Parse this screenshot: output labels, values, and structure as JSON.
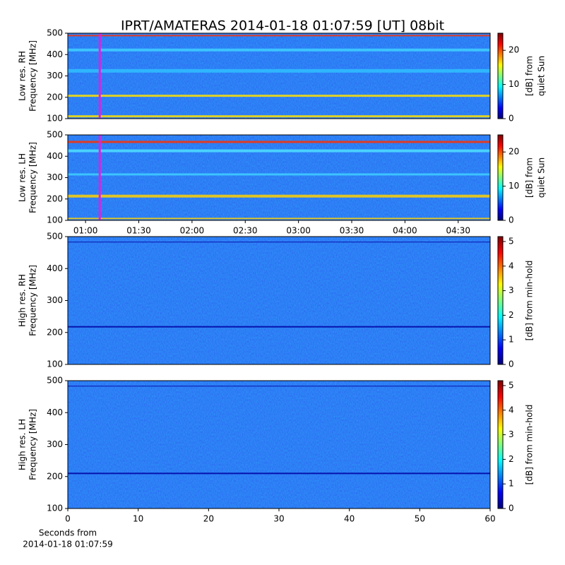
{
  "chart_data": [
    {
      "type": "spectrogram",
      "title": "IPRT/AMATERAS 2014-01-18 01:07:59 [UT]   08bit",
      "ylabel": [
        "Low res. RH",
        "Frequency [MHz]"
      ],
      "ylim": [
        100,
        500
      ],
      "yticks": [
        100,
        200,
        300,
        400,
        500
      ],
      "xlim": [
        50,
        288
      ],
      "marker_x": 68,
      "marker_color": "#e020e0",
      "colorbar": {
        "label": [
          "[dB] from",
          "quiet Sun"
        ],
        "lim": [
          0,
          25
        ],
        "ticks": [
          0,
          10,
          20
        ]
      }
    },
    {
      "type": "spectrogram",
      "ylabel": [
        "Low res. LH",
        "Frequency [MHz]"
      ],
      "ylim": [
        100,
        500
      ],
      "yticks": [
        100,
        200,
        300,
        400,
        500
      ],
      "xlim": [
        50,
        288
      ],
      "marker_x": 68,
      "marker_color": "#e020e0",
      "xticks": [
        {
          "value": 60,
          "label": "01:00"
        },
        {
          "value": 90,
          "label": "01:30"
        },
        {
          "value": 120,
          "label": "02:00"
        },
        {
          "value": 150,
          "label": "02:30"
        },
        {
          "value": 180,
          "label": "03:00"
        },
        {
          "value": 210,
          "label": "03:30"
        },
        {
          "value": 240,
          "label": "04:00"
        },
        {
          "value": 270,
          "label": "04:30"
        }
      ],
      "colorbar": {
        "label": [
          "[dB] from",
          "quiet Sun"
        ],
        "lim": [
          0,
          25
        ],
        "ticks": [
          0,
          10,
          20
        ]
      }
    },
    {
      "type": "spectrogram",
      "ylabel": [
        "High res. RH",
        "Frequency [MHz]"
      ],
      "ylim": [
        100,
        500
      ],
      "yticks": [
        100,
        200,
        300,
        400,
        500
      ],
      "xlim": [
        0,
        60
      ],
      "colorbar": {
        "label": [
          "[dB] from min-hold"
        ],
        "lim": [
          0,
          5.2
        ],
        "ticks": [
          0,
          1,
          2,
          3,
          4,
          5
        ]
      }
    },
    {
      "type": "spectrogram",
      "ylabel": [
        "High res. LH",
        "Frequency [MHz]"
      ],
      "ylim": [
        100,
        500
      ],
      "yticks": [
        100,
        200,
        300,
        400,
        500
      ],
      "xlim": [
        0,
        60
      ],
      "xticks": [
        0,
        10,
        20,
        30,
        40,
        50,
        60
      ],
      "xlabel": [
        "Seconds from",
        "2014-01-18 01:07:59"
      ],
      "colorbar": {
        "label": [
          "[dB] from min-hold"
        ],
        "lim": [
          0,
          5.2
        ],
        "ticks": [
          0,
          1,
          2,
          3,
          4,
          5
        ]
      }
    }
  ]
}
